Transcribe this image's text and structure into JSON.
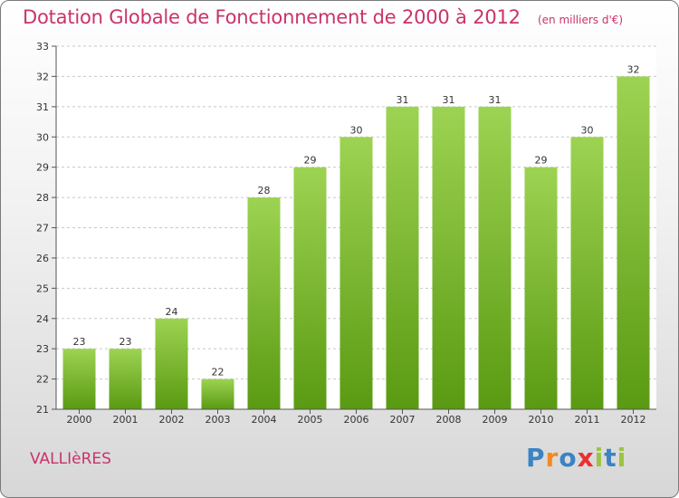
{
  "title": "Dotation Globale de Fonctionnement de 2000 à 2012",
  "subtitle": "(en milliers d'€)",
  "commune": "VALLIèRES",
  "logo": {
    "text": "Proxiti",
    "letters": [
      "P",
      "r",
      "o",
      "x",
      "i",
      "t",
      "i"
    ],
    "colors": [
      "#3b83c4",
      "#f18a21",
      "#3b83c4",
      "#e8312f",
      "#9bc43f",
      "#3b83c4",
      "#9bc43f"
    ]
  },
  "colors": {
    "bar_top": "#9dd352",
    "bar_bottom": "#5a9a12",
    "title": "#c9336b"
  },
  "chart_data": {
    "type": "bar",
    "title": "Dotation Globale de Fonctionnement de 2000 à 2012",
    "subtitle": "(en milliers d'€)",
    "categories": [
      "2000",
      "2001",
      "2002",
      "2003",
      "2004",
      "2005",
      "2006",
      "2007",
      "2008",
      "2009",
      "2010",
      "2011",
      "2012"
    ],
    "values": [
      23,
      23,
      24,
      22,
      28,
      29,
      30,
      31,
      31,
      31,
      29,
      30,
      32
    ],
    "ylim": [
      21,
      33
    ],
    "yticks": [
      21,
      22,
      23,
      24,
      25,
      26,
      27,
      28,
      29,
      30,
      31,
      32,
      33
    ],
    "grid": "horizontal dashed",
    "xlabel": "",
    "ylabel": ""
  }
}
